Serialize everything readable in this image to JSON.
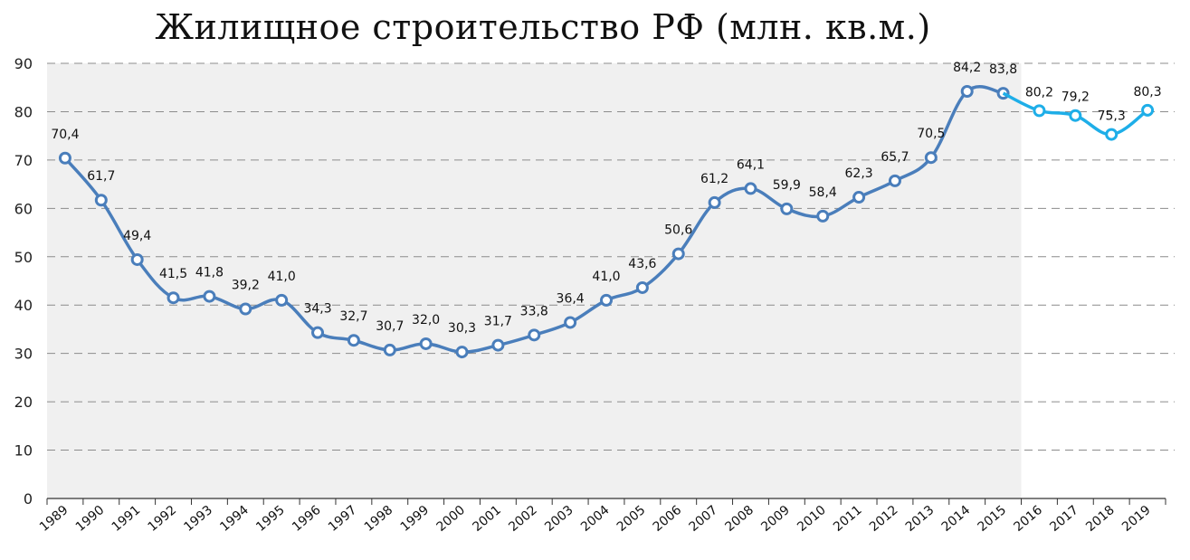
{
  "chart_data": {
    "type": "line",
    "title": "Жилищное строительство РФ  (млн. кв.м.)",
    "xlabel": "",
    "ylabel": "",
    "ylim": [
      0,
      90
    ],
    "yticks": [
      0,
      10,
      20,
      30,
      40,
      50,
      60,
      70,
      80,
      90
    ],
    "grid": "horizontal-dashed",
    "shaded_region": {
      "from": "1989",
      "to": "2015",
      "color": "#f0f0f0"
    },
    "categories": [
      "1989",
      "1990",
      "1991",
      "1992",
      "1993",
      "1994",
      "1995",
      "1996",
      "1997",
      "1998",
      "1999",
      "2000",
      "2001",
      "2002",
      "2003",
      "2004",
      "2005",
      "2006",
      "2007",
      "2008",
      "2009",
      "2010",
      "2011",
      "2012",
      "2013",
      "2014",
      "2015",
      "2016",
      "2017",
      "2018",
      "2019"
    ],
    "series": [
      {
        "style": "actual",
        "color": "#4a7ebb",
        "x": [
          "1989",
          "1990",
          "1991",
          "1992",
          "1993",
          "1994",
          "1995",
          "1996",
          "1997",
          "1998",
          "1999",
          "2000",
          "2001",
          "2002",
          "2003",
          "2004",
          "2005",
          "2006",
          "2007",
          "2008",
          "2009",
          "2010",
          "2011",
          "2012",
          "2013",
          "2014",
          "2015"
        ],
        "values": [
          70.4,
          61.7,
          49.4,
          41.5,
          41.8,
          39.2,
          41.0,
          34.3,
          32.7,
          30.7,
          32.0,
          30.3,
          31.7,
          33.8,
          36.4,
          41.0,
          43.6,
          50.6,
          61.2,
          64.1,
          59.9,
          58.4,
          62.3,
          65.7,
          70.5,
          84.2,
          83.8
        ],
        "labels": [
          "70,4",
          "61,7",
          "49,4",
          "41,5",
          "41,8",
          "39,2",
          "41,0",
          "34,3",
          "32,7",
          "30,7",
          "32,0",
          "30,3",
          "31,7",
          "33,8",
          "36,4",
          "41,0",
          "43,6",
          "50,6",
          "61,2",
          "64,1",
          "59,9",
          "58,4",
          "62,3",
          "65,7",
          "70,5",
          "84,2",
          "83,8"
        ]
      },
      {
        "style": "forecast",
        "color": "#1eaee8",
        "x": [
          "2015",
          "2016",
          "2017",
          "2018",
          "2019"
        ],
        "values": [
          83.8,
          80.2,
          79.2,
          75.3,
          80.3
        ],
        "labels": [
          "",
          "80,2",
          "79,2",
          "75,3",
          "80,3"
        ]
      }
    ]
  }
}
